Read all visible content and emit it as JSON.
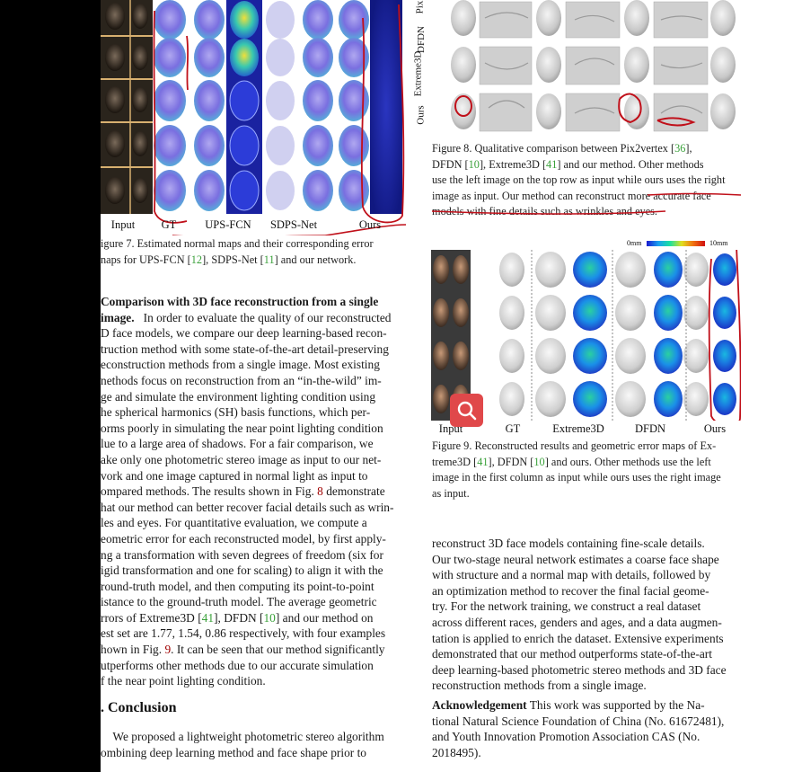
{
  "left": {
    "fig7_labels": [
      "Input",
      "GT",
      "UPS-FCN",
      "SDPS-Net",
      "Ours"
    ],
    "fig7_caption_line1": "igure 7. Estimated normal maps and their corresponding error",
    "fig7_caption_line2_a": "naps for UPS-FCN [",
    "fig7_caption_line2_b": "12",
    "fig7_caption_line2_c": "], SDPS-Net [",
    "fig7_caption_line2_d": "11",
    "fig7_caption_line2_e": "] and our network.",
    "para_heading_1": "Comparison with 3D face reconstruction from a single",
    "para_heading_2": "image.",
    "lines": [
      "In order to evaluate the quality of our reconstructed",
      "D face models, we compare our deep learning-based recon-",
      "truction method with some state-of-the-art detail-preserving",
      "econstruction methods from a single image. Most existing",
      "nethods focus on reconstruction from an “in-the-wild” im-",
      "ge and simulate the environment lighting condition using",
      "he spherical harmonics (SH) basis functions, which per-",
      "orms poorly in simulating the near point lighting condition",
      "lue to a large area of shadows. For a fair comparison, we",
      "ake only one photometric stereo image as input to our net-",
      "vork and one image captured in normal light as input to",
      "ompared methods. The results shown in Fig. ",
      "hat our method can better recover facial details such as wrin-",
      "les and eyes.  For quantitative evaluation, we compute a",
      "eometric error for each reconstructed model, by first apply-",
      "ng a transformation with seven degrees of freedom (six for",
      "igid transformation and one for scaling) to align it with the",
      "round-truth model, and then computing its point-to-point",
      "istance to the ground-truth model. The average geometric",
      "rrors of Extreme3D [",
      "est set are 1.77, 1.54, 0.86 respectively, with four examples",
      "hown in Fig. ",
      "utperforms other methods due to our accurate simulation",
      "f the near point lighting condition."
    ],
    "line12_ref": "8",
    "line12_tail": " demonstrate",
    "line20_a": "41",
    "line20_b": "], DFDN [",
    "line20_c": "10",
    "line20_d": "] and our method on",
    "line22_ref": "9",
    "line22_tail": ". It can be seen that our method significantly",
    "conclusion_heading": ". Conclusion",
    "conclusion_line1": "We proposed a lightweight photometric stereo algorithm",
    "conclusion_line2": "ombining deep learning method and face shape prior to"
  },
  "right": {
    "fig8_row_labels": [
      "Pix",
      "DFDN",
      "Extreme3D",
      "Ours"
    ],
    "fig8_caption": [
      "Figure 8.  Qualitative comparison between Pix2vertex [",
      "DFDN [",
      "image as input. Our method can reconstruct more accurate face",
      "models with fine details such as wrinkles and eyes."
    ],
    "fig8_cite_36": "36",
    "fig8_cite_10": "10",
    "fig8_cite_41": "41",
    "fig8_line2_mid": "], Extreme3D [",
    "fig8_line2_tail": "] and our method.  Other methods",
    "fig8_line3": "use the left image on the top row as input while ours uses the right",
    "colorbar_min": "0mm",
    "colorbar_max": "10mm",
    "fig9_labels": [
      "Input",
      "GT",
      "Extreme3D",
      "DFDN",
      "Ours"
    ],
    "fig9_caption": [
      "Figure 9. Reconstructed results and geometric error maps of Ex-",
      "treme3D [",
      "image in the first column as input while ours uses the right image",
      "as input."
    ],
    "fig9_cite_41": "41",
    "fig9_cite_10": "10",
    "fig9_line2_mid": "], DFDN [",
    "fig9_line2_tail": "] and ours.  Other methods use the left",
    "body_lines": [
      "reconstruct 3D face models containing fine-scale details.",
      "Our two-stage neural network estimates a coarse face shape",
      "with structure and a normal map with details, followed by",
      "an optimization method to recover the final facial geome-",
      "try.  For the network training, we construct a real dataset",
      "across different races, genders and ages, and a data augmen-",
      "tation is applied to enrich the dataset. Extensive experiments",
      "demonstrated that our method outperforms state-of-the-art",
      "deep learning-based photometric stereo methods and 3D face",
      "reconstruction methods from a single image."
    ],
    "ack_heading": "Acknowledgement",
    "ack_lines": [
      " This work was supported by the Na-",
      "tional Natural Science Foundation of China (No. 61672481),",
      "and Youth Innovation Promotion Association CAS (No.",
      "2018495)."
    ]
  },
  "colors": {
    "annotation_red": "#c0101a",
    "citation_green": "#3aa13a",
    "reference_red": "#a00000",
    "search_button": "#e0484a"
  },
  "icons": [
    "search-icon"
  ]
}
